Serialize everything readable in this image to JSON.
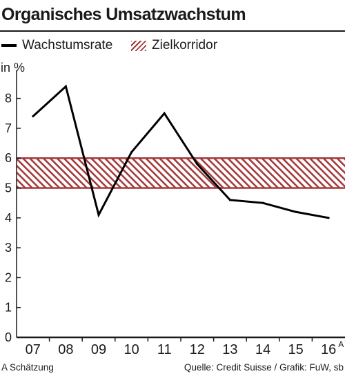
{
  "chart_data": {
    "type": "line",
    "title": "Organisches Umsatzwachstum",
    "ylabel": "in %",
    "xlabel": "",
    "categories": [
      "07",
      "08",
      "09",
      "10",
      "11",
      "12",
      "13",
      "14",
      "15",
      "16"
    ],
    "category_superscripts": [
      "",
      "",
      "",
      "",
      "",
      "",
      "",
      "",
      "",
      "A"
    ],
    "series": [
      {
        "name": "Wachstumsrate",
        "values": [
          7.4,
          8.4,
          4.1,
          6.2,
          7.5,
          5.8,
          4.6,
          4.5,
          4.2,
          4.0
        ],
        "color": "#000000"
      }
    ],
    "band": {
      "name": "Zielkorridor",
      "from": 5,
      "to": 6,
      "color": "#a33a3c"
    },
    "yticks": [
      0,
      1,
      2,
      3,
      4,
      5,
      6,
      7,
      8
    ],
    "ylim": [
      0,
      8.8
    ],
    "grid": false,
    "legend_position": "top",
    "footnote": "A Schätzung",
    "source": "Quelle: Credit Suisse / Grafik: FuW, sb"
  }
}
